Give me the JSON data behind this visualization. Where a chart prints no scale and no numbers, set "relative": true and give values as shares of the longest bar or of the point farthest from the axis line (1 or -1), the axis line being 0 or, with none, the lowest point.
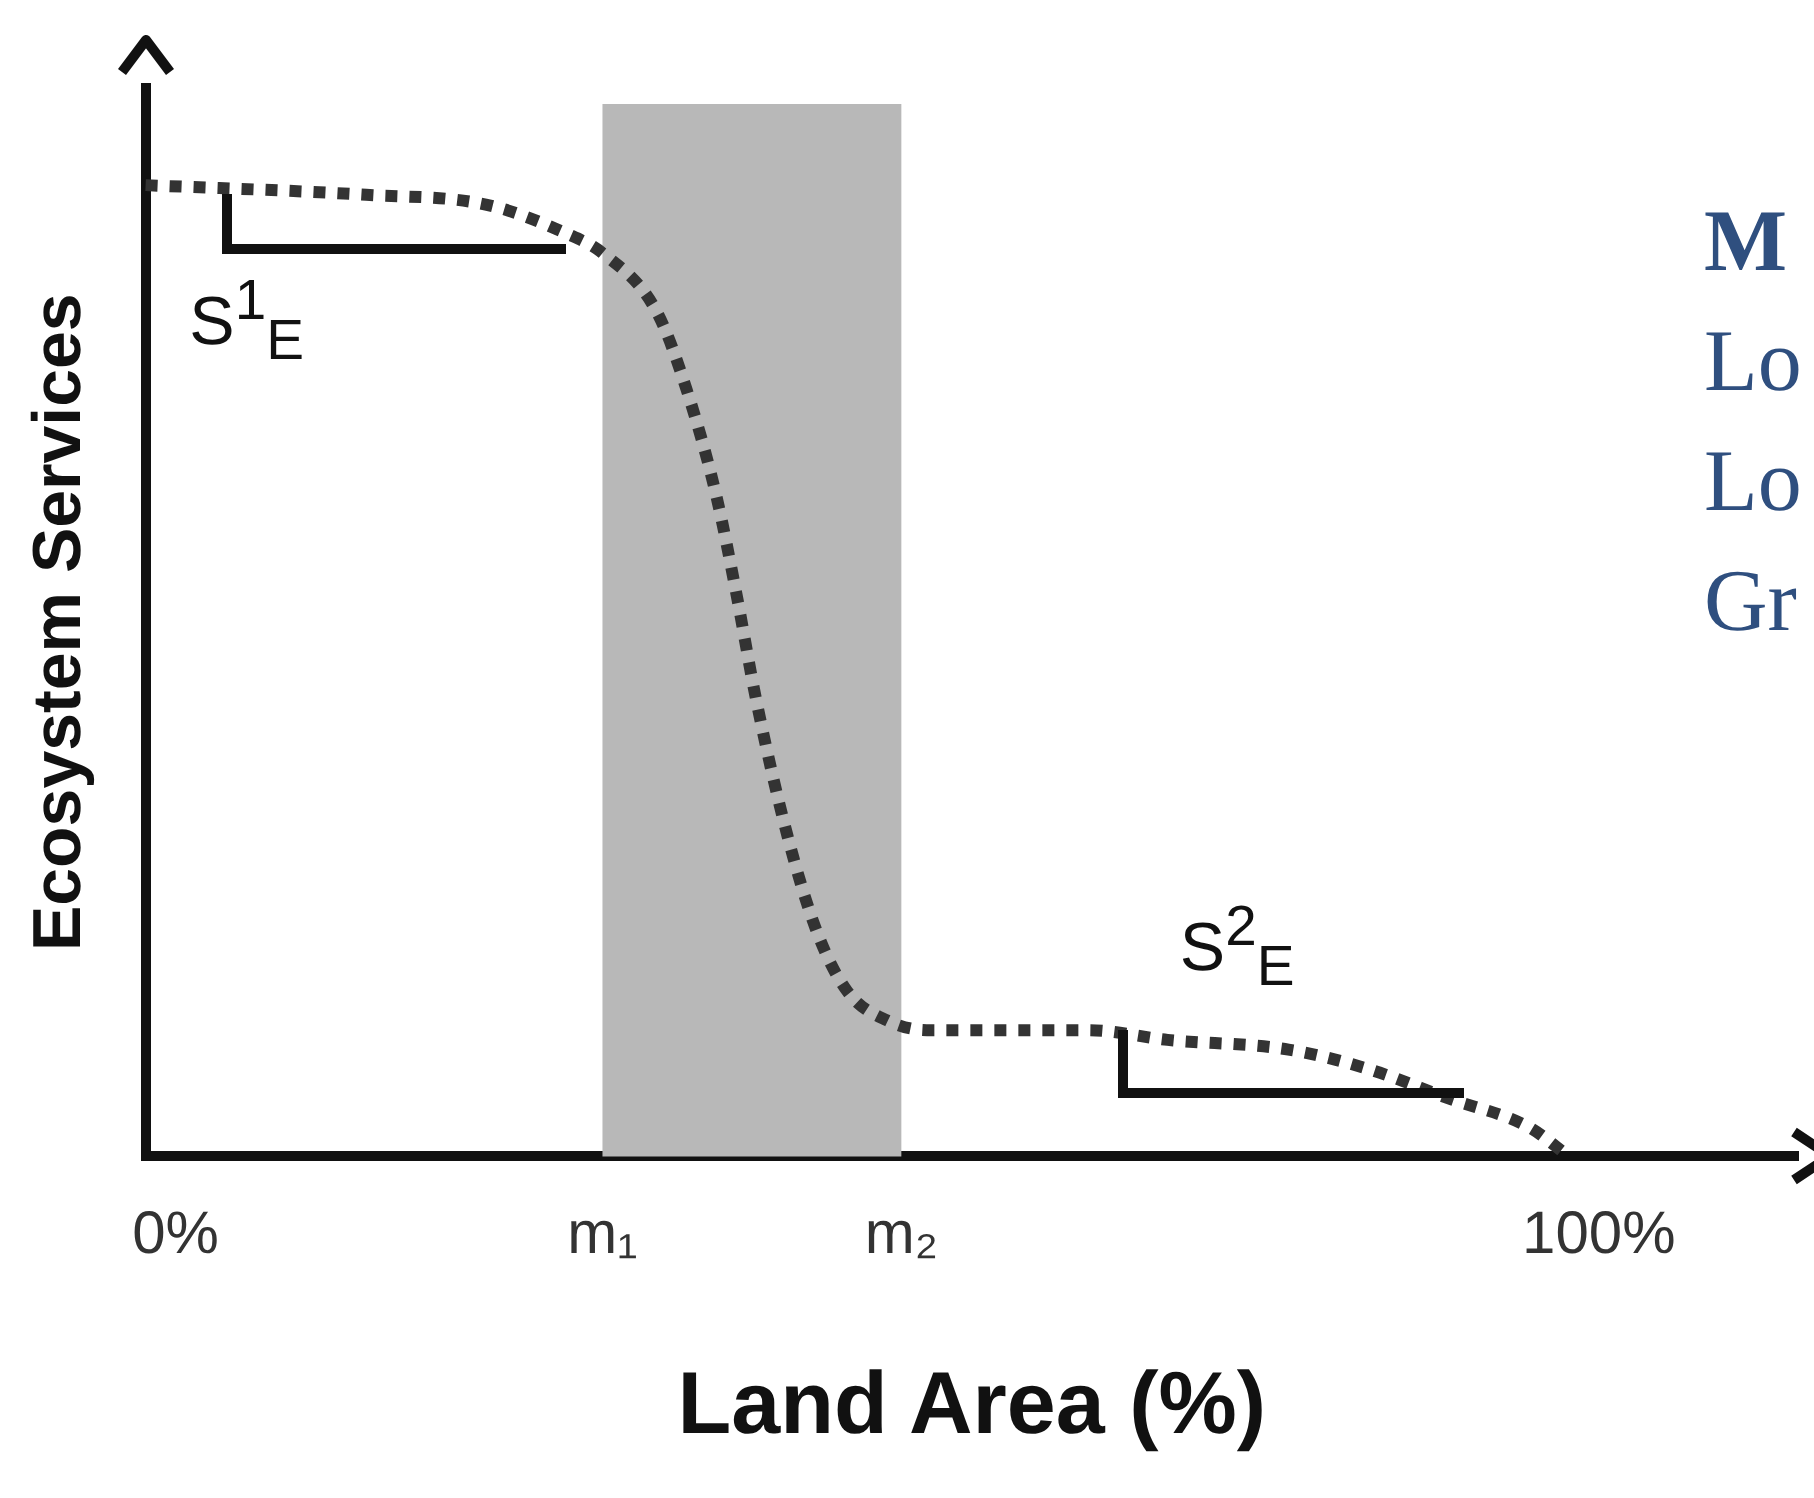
{
  "chart_data": {
    "type": "line",
    "relative": true,
    "xlabel": "Land Area (%)",
    "ylabel": "Ecosystem Services",
    "x": [
      -2.1,
      13.4,
      21.8,
      27.5,
      30,
      33.8,
      35.9,
      38,
      39.4,
      40.8,
      43,
      45.1,
      47.2,
      50,
      52.8,
      64.1,
      69.7,
      78.2,
      83.8,
      89.4,
      95.1,
      97.9
    ],
    "series": [
      {
        "color": "#333333",
        "line_style": "dotted",
        "values": [
          1,
          0.99,
          0.98,
          0.95,
          0.93,
          0.87,
          0.79,
          0.68,
          0.58,
          0.47,
          0.33,
          0.23,
          0.17,
          0.14,
          0.13,
          0.13,
          0.12,
          0.11,
          0.09,
          0.06,
          0.03,
          0
        ]
      }
    ],
    "xlim": [
      -2.1,
      114
    ],
    "xticks": [
      {
        "value": 0,
        "label": "0%"
      },
      {
        "value": 30,
        "label": "m₁"
      },
      {
        "value": 51,
        "label": "m₂"
      },
      {
        "value": 100,
        "label": "100%"
      }
    ],
    "bands": [
      {
        "axis": "x",
        "from": 30,
        "to": 51,
        "color": "#b8b8b8"
      }
    ],
    "marker": "none",
    "legend": false,
    "annotations": [
      "S$^{1}$$_{E}$",
      "S$^{2}$$_{E}$",
      "M",
      "Lo",
      "Lo",
      "Gr"
    ]
  }
}
